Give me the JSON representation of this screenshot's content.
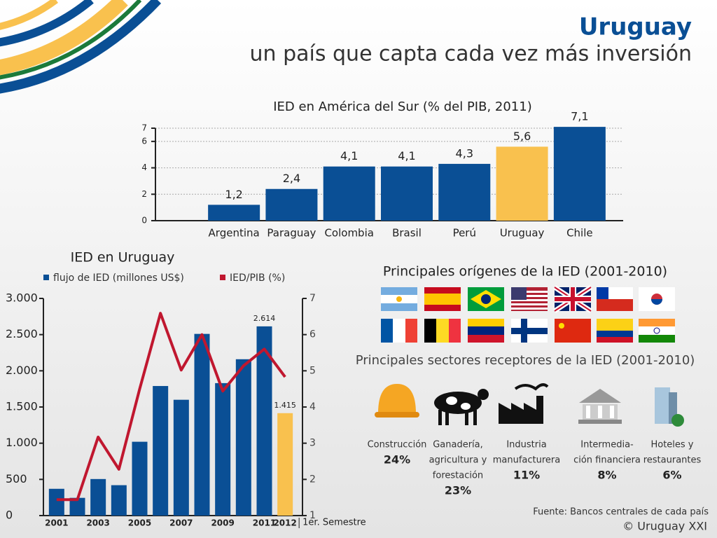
{
  "header": {
    "title": "Uruguay",
    "subtitle": "un país que capta cada vez más inversión"
  },
  "chart_data": [
    {
      "type": "bar",
      "title": "IED en América del Sur (% del PIB, 2011)",
      "categories": [
        "Argentina",
        "Paraguay",
        "Colombia",
        "Brasil",
        "Perú",
        "Uruguay",
        "Chile"
      ],
      "values": [
        1.2,
        2.4,
        4.1,
        4.1,
        4.3,
        5.6,
        7.1
      ],
      "value_labels": [
        "1,2",
        "2,4",
        "4,1",
        "4,1",
        "4,3",
        "5,6",
        "7,1"
      ],
      "colors": [
        "#0a4f95",
        "#0a4f95",
        "#0a4f95",
        "#0a4f95",
        "#0a4f95",
        "#f9c14e",
        "#0a4f95"
      ],
      "ylim": [
        0,
        7
      ],
      "yticks": [
        0,
        2,
        4,
        6,
        7
      ],
      "grid": true
    },
    {
      "type": "combo",
      "title": "IED en Uruguay",
      "categories": [
        "2001",
        null,
        "2003",
        null,
        "2005",
        null,
        "2007",
        null,
        "2009",
        null,
        "2011",
        "2012"
      ],
      "annotation": "1er. Semestre",
      "series": [
        {
          "name": "flujo de IED (millones US$)",
          "color": "#0a4f95",
          "colors": [
            "#0a4f95",
            "#0a4f95",
            "#0a4f95",
            "#0a4f95",
            "#0a4f95",
            "#0a4f95",
            "#0a4f95",
            "#0a4f95",
            "#0a4f95",
            "#0a4f95",
            "#0a4f95",
            "#f9c14e"
          ],
          "values": [
            370,
            245,
            505,
            420,
            1020,
            1790,
            1600,
            2510,
            1830,
            2160,
            2614,
            1415
          ],
          "value_labels": [
            null,
            null,
            null,
            null,
            null,
            null,
            null,
            null,
            null,
            null,
            "2.614",
            "1.415"
          ]
        },
        {
          "name": "IED/PIB (%)",
          "color": "#c0172f",
          "axis": "y2",
          "values": [
            1.44,
            1.44,
            3.17,
            2.28,
            4.5,
            6.59,
            5.02,
            6.0,
            4.44,
            5.14,
            5.6,
            4.83
          ]
        }
      ],
      "ylim": [
        0,
        3000
      ],
      "yticks": [
        0,
        500,
        {
          "value": 1000,
          "label": "1.000"
        },
        {
          "value": 1500,
          "label": "1.500"
        },
        {
          "value": 2000,
          "label": "2.000"
        },
        {
          "value": 2500,
          "label": "2.500"
        },
        {
          "value": 3000,
          "label": "3.000"
        }
      ],
      "y2lim": [
        1,
        7
      ],
      "y2ticks": [
        1,
        2,
        3,
        4,
        5,
        6,
        7
      ]
    }
  ],
  "origins": {
    "title": "Principales orígenes de la IED (2001-2010)"
  },
  "sectors": {
    "title": "Principales sectores receptores de la IED (2001-2010)",
    "items": [
      {
        "lines": [
          "Construcción"
        ],
        "share": "24%"
      },
      {
        "lines": [
          "Ganadería,",
          "agricultura y",
          "forestación"
        ],
        "share": "23%"
      },
      {
        "lines": [
          "Industria",
          "manufacturera"
        ],
        "share": "11%"
      },
      {
        "lines": [
          "Intermedia-",
          "ción financiera"
        ],
        "share": "8%"
      },
      {
        "lines": [
          "Hoteles y",
          "restaurantes"
        ],
        "share": "6%"
      }
    ]
  },
  "source": "Fuente:  Bancos centrales de cada país",
  "copyright": "© Uruguay XXI"
}
